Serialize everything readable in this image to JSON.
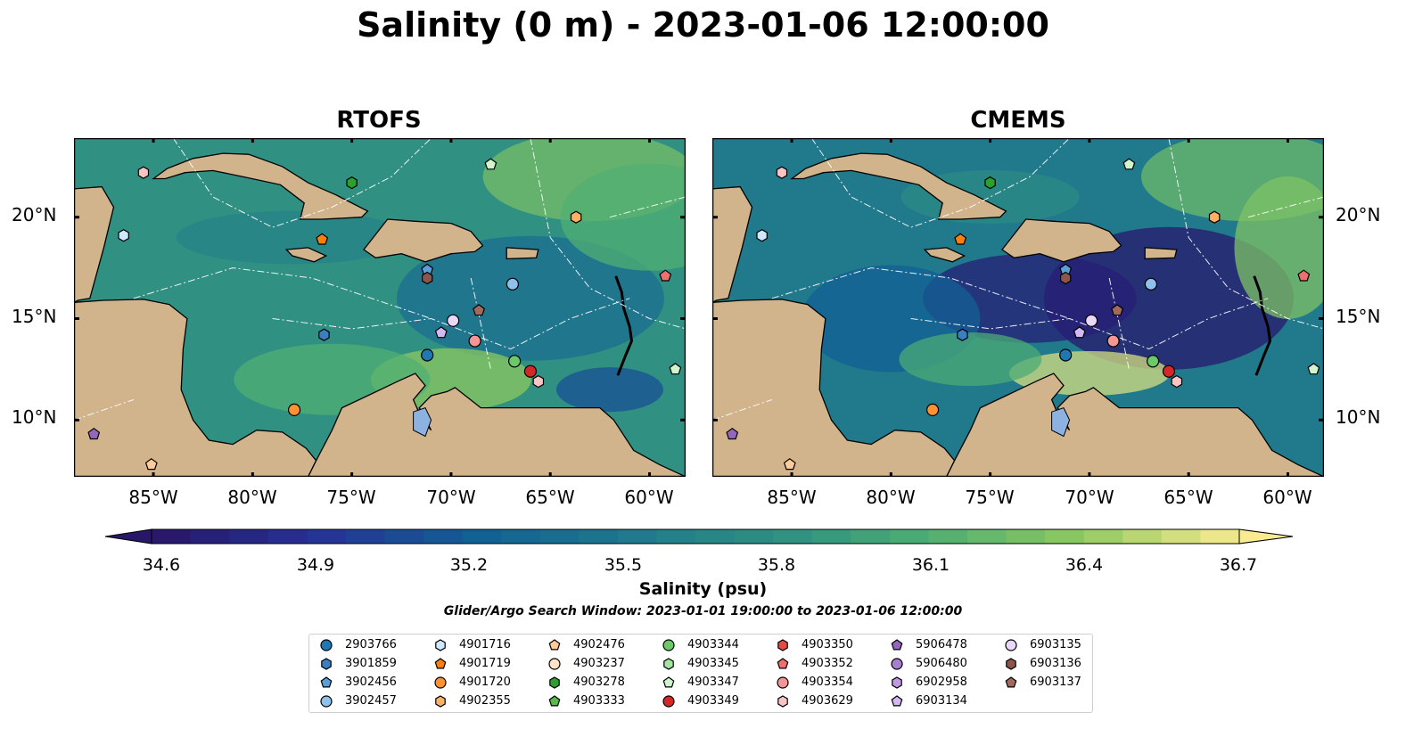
{
  "title": "Salinity (0 m) - 2023-01-06 12:00:00",
  "panels": [
    {
      "title": "RTOFS"
    },
    {
      "title": "CMEMS"
    }
  ],
  "lat_labels": [
    "20°N",
    "15°N",
    "10°N"
  ],
  "lon_labels": [
    "85°W",
    "80°W",
    "75°W",
    "70°W",
    "65°W",
    "60°W"
  ],
  "colorbar": {
    "label": "Salinity (psu)",
    "ticks": [
      "34.6",
      "34.9",
      "35.2",
      "35.5",
      "35.8",
      "36.1",
      "36.4",
      "36.7"
    ],
    "min": 34.6,
    "max": 36.7,
    "colormap": "haline",
    "extend": "both"
  },
  "search_window": "Glider/Argo Search Window: 2023-01-01 19:00:00 to 2023-01-06 12:00:00",
  "legend": [
    {
      "id": "2903766",
      "marker": "circle",
      "color": "#1f77b4"
    },
    {
      "id": "3901859",
      "marker": "hexagon",
      "color": "#3a7fc1"
    },
    {
      "id": "3902456",
      "marker": "pentagon",
      "color": "#5a9fd8"
    },
    {
      "id": "3902457",
      "marker": "circle",
      "color": "#8ec2ee"
    },
    {
      "id": "4901716",
      "marker": "hexagon",
      "color": "#cfe8fa"
    },
    {
      "id": "4901719",
      "marker": "pentagon",
      "color": "#ff7f0e"
    },
    {
      "id": "4901720",
      "marker": "circle",
      "color": "#ff9133"
    },
    {
      "id": "4902355",
      "marker": "hexagon",
      "color": "#ffb062"
    },
    {
      "id": "4902476",
      "marker": "pentagon",
      "color": "#ffcc99"
    },
    {
      "id": "4903237",
      "marker": "circle",
      "color": "#ffe3c8"
    },
    {
      "id": "4903278",
      "marker": "hexagon",
      "color": "#2ca02c"
    },
    {
      "id": "4903333",
      "marker": "pentagon",
      "color": "#55bb44"
    },
    {
      "id": "4903344",
      "marker": "circle",
      "color": "#6cc96a"
    },
    {
      "id": "4903345",
      "marker": "hexagon",
      "color": "#a5e3a0"
    },
    {
      "id": "4903347",
      "marker": "pentagon",
      "color": "#d0f5cc"
    },
    {
      "id": "4903349",
      "marker": "circle",
      "color": "#d62728"
    },
    {
      "id": "4903350",
      "marker": "hexagon",
      "color": "#e34a4a"
    },
    {
      "id": "4903352",
      "marker": "pentagon",
      "color": "#ee6f6f"
    },
    {
      "id": "4903354",
      "marker": "circle",
      "color": "#f59595"
    },
    {
      "id": "4903629",
      "marker": "hexagon",
      "color": "#fbc3c3"
    },
    {
      "id": "5906478",
      "marker": "pentagon",
      "color": "#9467bd"
    },
    {
      "id": "5906480",
      "marker": "circle",
      "color": "#a77fd0"
    },
    {
      "id": "6902958",
      "marker": "hexagon",
      "color": "#bf9ae3"
    },
    {
      "id": "6903134",
      "marker": "pentagon",
      "color": "#d4b8f2"
    },
    {
      "id": "6903135",
      "marker": "circle",
      "color": "#ead8fb"
    },
    {
      "id": "6903136",
      "marker": "hexagon",
      "color": "#8c564b"
    },
    {
      "id": "6903137",
      "marker": "pentagon",
      "color": "#a36a5c"
    }
  ],
  "floats": [
    {
      "id": "4903629",
      "lon": -85.5,
      "lat": 22.2
    },
    {
      "id": "4901716",
      "lon": -86.5,
      "lat": 19.1
    },
    {
      "id": "4903278",
      "lon": -75.0,
      "lat": 21.7
    },
    {
      "id": "4903347",
      "lon": -68.0,
      "lat": 22.6
    },
    {
      "id": "4901719",
      "lon": -76.5,
      "lat": 18.9
    },
    {
      "id": "4902355",
      "lon": -63.7,
      "lat": 20.0
    },
    {
      "id": "3902456",
      "lon": -71.2,
      "lat": 17.4
    },
    {
      "id": "6903136",
      "lon": -71.2,
      "lat": 17.0
    },
    {
      "id": "3902457",
      "lon": -66.9,
      "lat": 16.7
    },
    {
      "id": "4903352",
      "lon": -59.2,
      "lat": 17.1
    },
    {
      "id": "6903137",
      "lon": -68.6,
      "lat": 15.4
    },
    {
      "id": "6903135",
      "lon": -69.9,
      "lat": 14.9
    },
    {
      "id": "3901859",
      "lon": -76.4,
      "lat": 14.2
    },
    {
      "id": "6903134",
      "lon": -70.5,
      "lat": 14.3
    },
    {
      "id": "4903354",
      "lon": -68.8,
      "lat": 13.9
    },
    {
      "id": "2903766",
      "lon": -71.2,
      "lat": 13.2
    },
    {
      "id": "4903344",
      "lon": -66.8,
      "lat": 12.9
    },
    {
      "id": "4903349",
      "lon": -66.0,
      "lat": 12.4
    },
    {
      "id": "4903629",
      "lon": -65.6,
      "lat": 11.9
    },
    {
      "id": "4903347",
      "lon": -58.7,
      "lat": 12.5
    },
    {
      "id": "4901720",
      "lon": -77.9,
      "lat": 10.5
    },
    {
      "id": "5906478",
      "lon": -88.0,
      "lat": 9.3
    },
    {
      "id": "4902476",
      "lon": -85.1,
      "lat": 7.8
    }
  ]
}
